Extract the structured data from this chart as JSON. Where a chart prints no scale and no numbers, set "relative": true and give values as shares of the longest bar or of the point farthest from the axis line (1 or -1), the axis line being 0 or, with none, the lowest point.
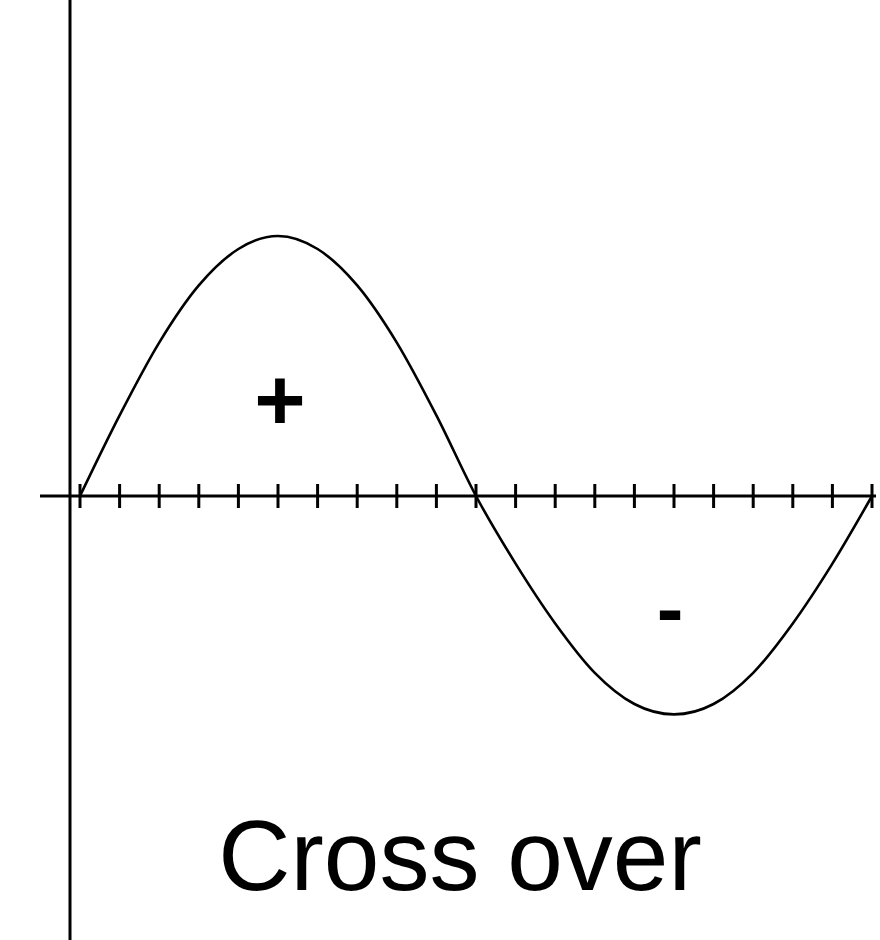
{
  "chart_data": {
    "type": "line",
    "relative": true,
    "categories": [
      null,
      null,
      null,
      null,
      null,
      null,
      null,
      null,
      null,
      null,
      null,
      null,
      null,
      null,
      null,
      null,
      null,
      null,
      null,
      null,
      null
    ],
    "series": [
      {
        "color": "#000000",
        "values": [
          0,
          0.31,
          0.59,
          0.81,
          0.95,
          1,
          0.95,
          0.81,
          0.59,
          0.31,
          0,
          -0.26,
          -0.49,
          -0.68,
          -0.8,
          -0.84,
          -0.8,
          -0.68,
          -0.49,
          -0.26,
          0
        ]
      }
    ],
    "annotations": [
      "+",
      "-",
      "Cross over"
    ],
    "marker": "none",
    "line_style": "solid"
  }
}
